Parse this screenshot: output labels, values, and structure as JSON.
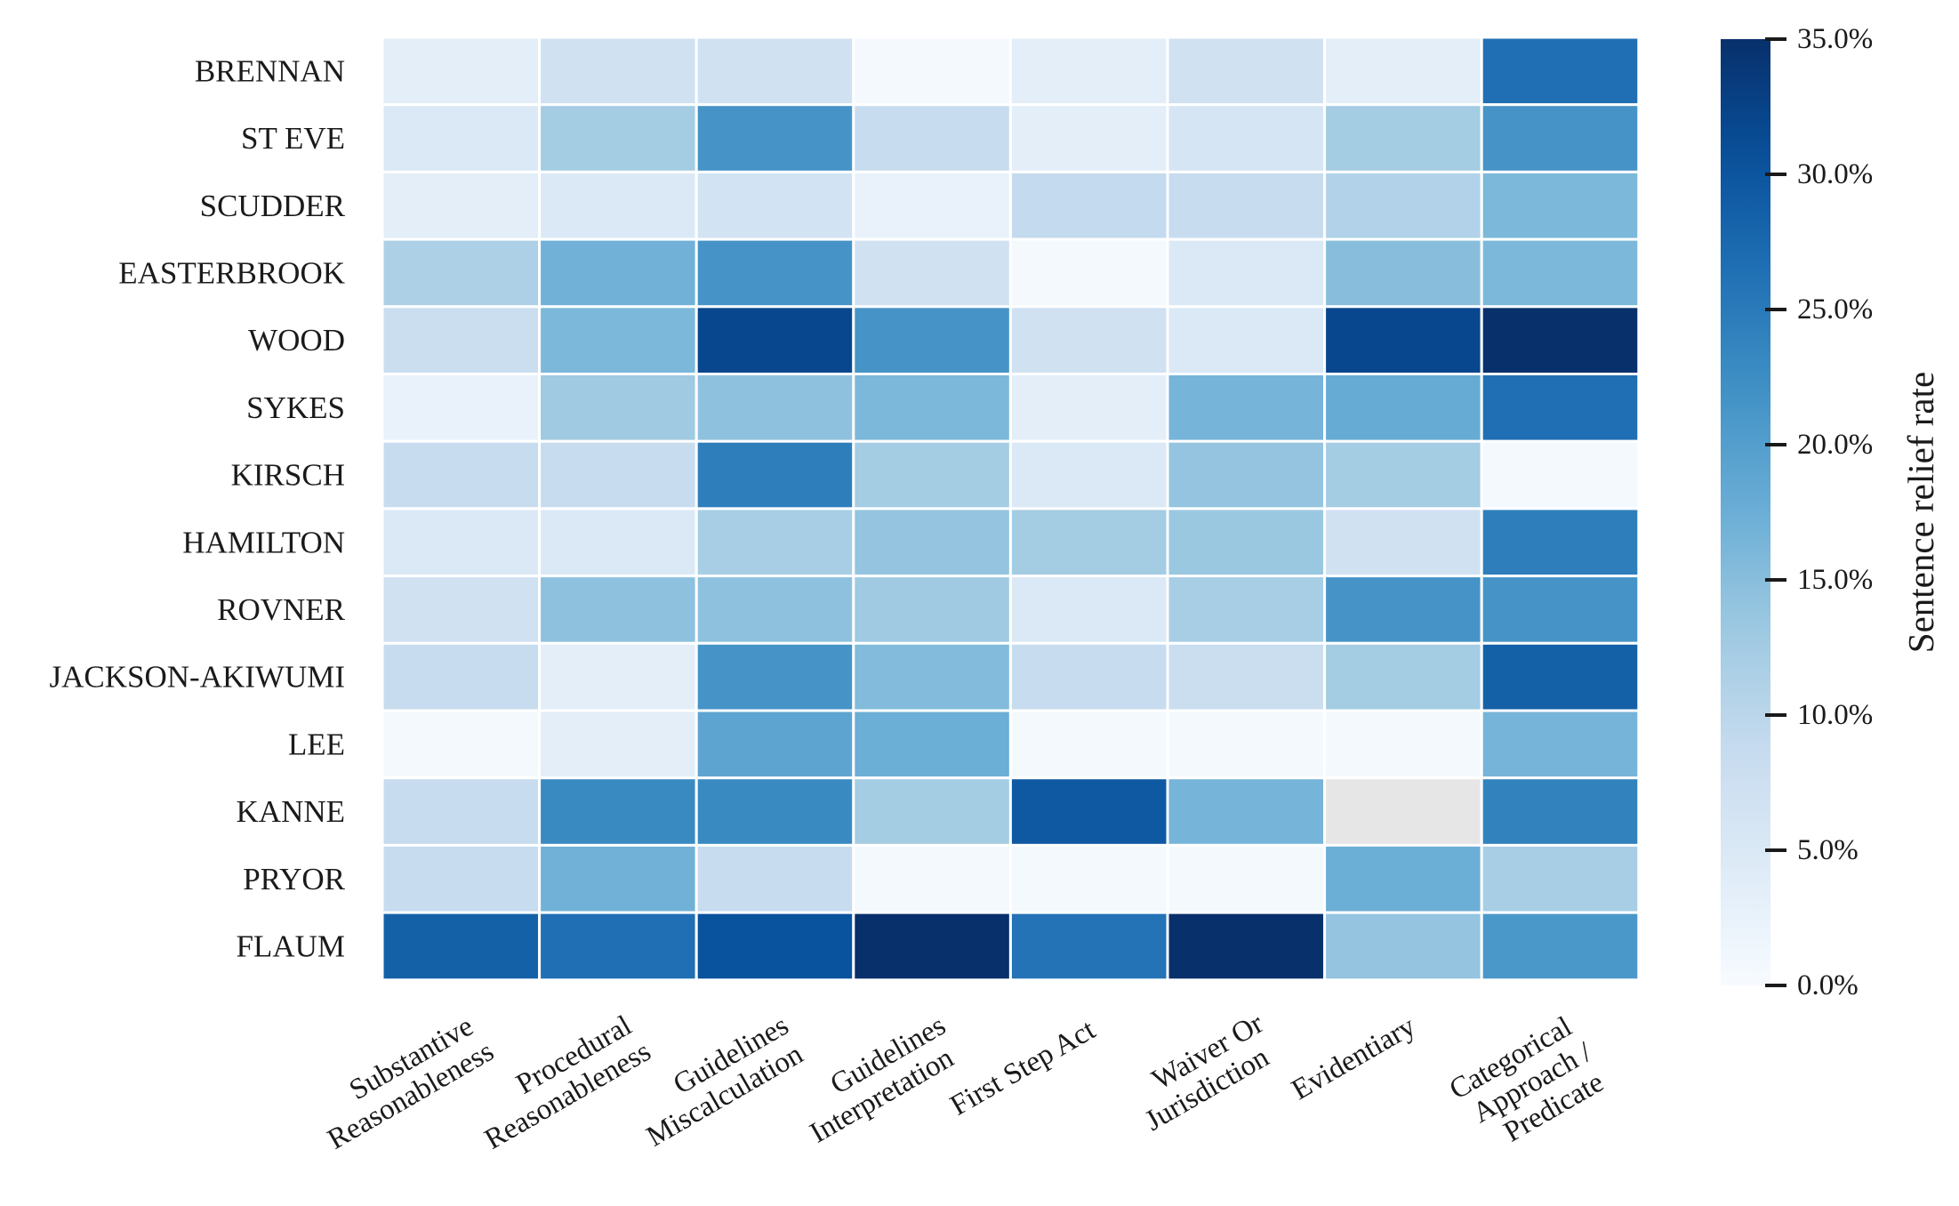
{
  "chart_data": {
    "type": "heatmap",
    "title": "",
    "xlabel": "",
    "ylabel": "",
    "rows": [
      "BRENNAN",
      "ST EVE",
      "SCUDDER",
      "EASTERBROOK",
      "WOOD",
      "SYKES",
      "KIRSCH",
      "HAMILTON",
      "ROVNER",
      "JACKSON-AKIWUMI",
      "LEE",
      "KANNE",
      "PRYOR",
      "FLAUM"
    ],
    "columns": [
      [
        "Substantive",
        "Reasonableness"
      ],
      [
        "Procedural",
        "Reasonableness"
      ],
      [
        "Guidelines",
        "Miscalculation"
      ],
      [
        "Guidelines",
        "Interpretation"
      ],
      [
        "First Step Act"
      ],
      [
        "Waiver Or",
        "Jurisdiction"
      ],
      [
        "Evidentiary"
      ],
      [
        "Categorical",
        "Approach /",
        "Predicate"
      ]
    ],
    "values": [
      [
        3.5,
        7.0,
        7.0,
        0.5,
        3.5,
        7.0,
        3.5,
        26.5
      ],
      [
        5.0,
        12.5,
        21.5,
        8.5,
        3.5,
        6.0,
        12.5,
        21.5
      ],
      [
        3.5,
        5.0,
        6.5,
        2.5,
        9.0,
        8.5,
        11.0,
        16.0
      ],
      [
        11.5,
        17.0,
        21.5,
        7.0,
        0.5,
        5.0,
        15.0,
        16.0
      ],
      [
        8.0,
        16.0,
        32.0,
        21.5,
        7.0,
        5.0,
        32.0,
        35.0
      ],
      [
        2.5,
        13.0,
        14.5,
        16.0,
        3.5,
        16.5,
        18.0,
        26.5
      ],
      [
        8.5,
        8.5,
        24.5,
        12.5,
        5.0,
        14.0,
        12.5,
        0.5
      ],
      [
        5.0,
        5.0,
        12.0,
        14.0,
        12.5,
        13.5,
        7.0,
        24.5
      ],
      [
        7.0,
        14.5,
        14.5,
        13.0,
        5.0,
        12.0,
        21.5,
        21.5
      ],
      [
        8.5,
        3.5,
        21.5,
        15.5,
        8.5,
        8.0,
        12.5,
        28.5
      ],
      [
        0.5,
        3.5,
        19.0,
        17.5,
        0.5,
        0.5,
        0.5,
        16.5
      ],
      [
        8.5,
        23.0,
        23.0,
        12.5,
        29.5,
        16.5,
        null,
        24.0
      ],
      [
        8.5,
        17.0,
        8.5,
        0.5,
        0.5,
        0.5,
        17.5,
        12.0
      ],
      [
        28.5,
        26.5,
        30.5,
        35.0,
        26.0,
        35.0,
        14.0,
        21.0
      ]
    ],
    "missing_color": "#e6e6e6",
    "colormap": "Blues",
    "vmin": 0,
    "vmax": 35,
    "colorbar": {
      "label": "Sentence relief rate",
      "ticks": [
        0,
        5,
        10,
        15,
        20,
        25,
        30,
        35
      ],
      "tick_labels": [
        "0.0%",
        "5.0%",
        "10.0%",
        "15.0%",
        "20.0%",
        "25.0%",
        "30.0%",
        "35.0%"
      ]
    },
    "grid": false,
    "legend": "colorbar-right"
  }
}
